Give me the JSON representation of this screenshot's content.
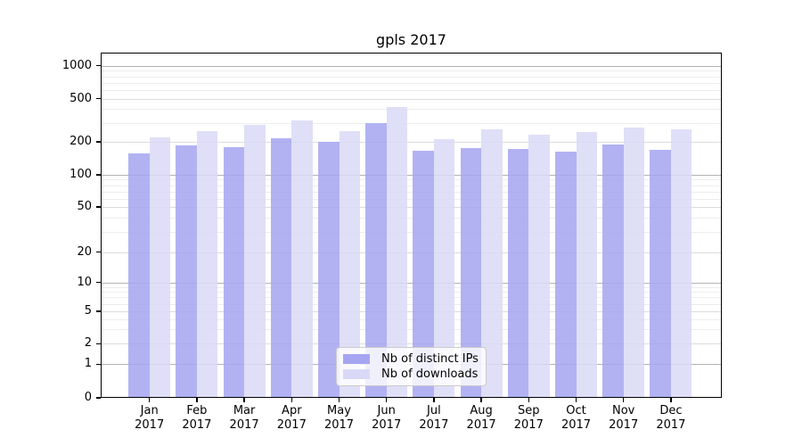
{
  "title": "gpls 2017",
  "chart_data": {
    "type": "bar",
    "title": "gpls 2017",
    "categories": [
      "Jan",
      "Feb",
      "Mar",
      "Apr",
      "May",
      "Jun",
      "Jul",
      "Aug",
      "Sep",
      "Oct",
      "Nov",
      "Dec"
    ],
    "x_tick_second_line": "2017",
    "series": [
      {
        "name": "Nb of distinct IPs",
        "color": "#a5a5f1",
        "values": [
          157,
          186,
          180,
          215,
          200,
          298,
          166,
          174,
          172,
          163,
          189,
          168
        ]
      },
      {
        "name": "Nb of downloads",
        "color": "#d9d9f7",
        "values": [
          218,
          252,
          288,
          316,
          252,
          420,
          212,
          263,
          233,
          247,
          273,
          262
        ]
      }
    ],
    "xlabel": "",
    "ylabel": "",
    "yscale": "symlog",
    "y_ticks": [
      0,
      1,
      2,
      5,
      10,
      20,
      50,
      100,
      200,
      500,
      1000
    ],
    "y_minor_ticks": [
      3,
      4,
      6,
      7,
      8,
      9,
      30,
      40,
      60,
      70,
      80,
      90,
      300,
      400,
      600,
      700,
      800,
      900
    ],
    "ylim": [
      0,
      1250
    ],
    "grid": true,
    "legend_position": "lower center"
  },
  "colors": {
    "distinct_ips": "#a5a5f1",
    "downloads": "#d9d9f7",
    "grid_decade": "#b3b3b3",
    "grid_major": "#dcdcdc",
    "grid_minor": "#ededed",
    "axis": "#000000",
    "background": "#ffffff"
  }
}
